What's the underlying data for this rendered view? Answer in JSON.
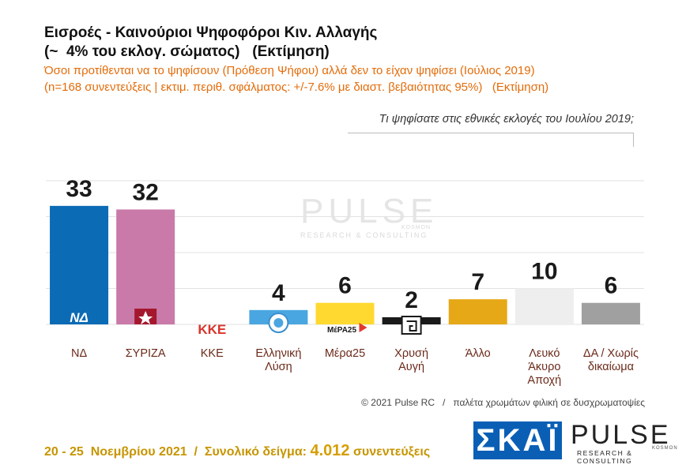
{
  "header": {
    "title_line1": "Εισροές - Καινούριοι Ψηφοφόροι Κιν. Αλλαγής",
    "title_line2": "(~  4% του εκλογ. σώματος)   (Εκτίμηση)",
    "subtitle_line1": "Όσοι προτίθενται να το ψηφίσουν (Πρόθεση Ψήφου) αλλά δεν το είχαν ψηφίσει (Ιούλιος 2019)",
    "subtitle_line2": "(n=168 συνεντεύξεις | εκτιμ. περιθ. σφάλματος: +/-7.6% με διαστ. βεβαιότητας 95%)   (Εκτίμηση)",
    "question": "Τι ψηφίσατε στις εθνικές εκλογές του Ιουλίου 2019;"
  },
  "chart_data": {
    "type": "bar",
    "categories": [
      "ΝΔ",
      "ΣΥΡΙΖΑ",
      "ΚΚΕ",
      "Ελληνική Λύση",
      "Μέρα25",
      "Χρυσή Αυγή",
      "Άλλο",
      "Λευκό Άκυρο Αποχή",
      "ΔΑ / Χωρίς δικαίωμα"
    ],
    "category_lines": [
      [
        "ΝΔ"
      ],
      [
        "ΣΥΡΙΖΑ"
      ],
      [
        "ΚΚΕ"
      ],
      [
        "Ελληνική",
        "Λύση"
      ],
      [
        "Μέρα25"
      ],
      [
        "Χρυσή",
        "Αυγή"
      ],
      [
        "Άλλο"
      ],
      [
        "Λευκό",
        "Άκυρο",
        "Αποχή"
      ],
      [
        "ΔΑ / Χωρίς",
        "δικαίωμα"
      ]
    ],
    "values": [
      33,
      32,
      null,
      4,
      6,
      2,
      7,
      10,
      6
    ],
    "value_labels": [
      "33",
      "32",
      "",
      "4",
      "6",
      "2",
      "7",
      "10",
      "6"
    ],
    "colors": [
      "#0b6bb5",
      "#c97aa9",
      "#d9342b",
      "#4aa6e0",
      "#ffd92f",
      "#1a1a1a",
      "#e6a817",
      "#eeeeee",
      "#a0a0a0"
    ],
    "party_marks": [
      "ΝΔ",
      "",
      "ΚΚΕ",
      "",
      "ΜέΡΑ25",
      "",
      "",
      "",
      ""
    ],
    "ylim": [
      0,
      40
    ]
  },
  "watermark": {
    "word": "PULSE",
    "sub": "RESEARCH & CONSULTING",
    "kosmos": "KOSMON"
  },
  "copyright": "© 2021 Pulse RC   /   παλέτα χρωμάτων φιλική σε δυσχρωματοψίες",
  "footer": {
    "dates": "20 - 25  Νοεμβρίου 2021  /  Συνολικό δείγμα:",
    "sample": "4.012",
    "unit": "συνεντεύξεις"
  },
  "logos": {
    "skai": "ΣΚΑΪ",
    "pulse": "PULSE",
    "pulse_sub": "RESEARCH & CONSULTING",
    "pulse_kosmos": "KOSMON"
  }
}
